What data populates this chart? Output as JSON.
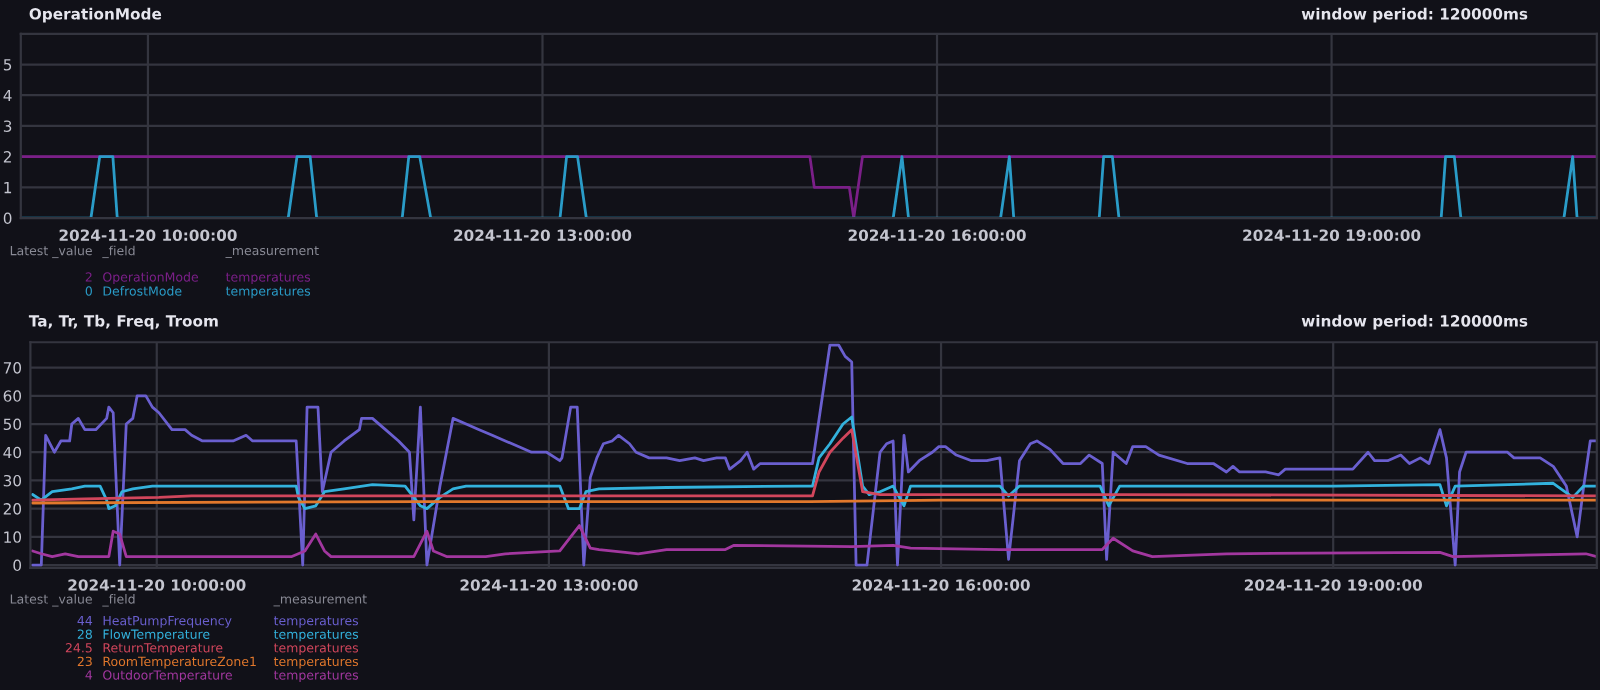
{
  "chart_data": [
    {
      "type": "line",
      "title": "OperationMode",
      "xlim": [
        "2024-11-20T09:02",
        "2024-11-20T21:01"
      ],
      "xticks": [
        {
          "value": "2024-11-20T10:00",
          "label": "2024-11-20 10:00:00"
        },
        {
          "value": "2024-11-20T13:00",
          "label": "2024-11-20 13:00:00"
        },
        {
          "value": "2024-11-20T16:00",
          "label": "2024-11-20 16:00:00"
        },
        {
          "value": "2024-11-20T19:00",
          "label": "2024-11-20 19:00:00"
        }
      ],
      "ylim": [
        0,
        6
      ],
      "yticks": [
        0,
        1,
        2,
        3,
        4,
        5
      ],
      "grid": true,
      "legend": "bottom left",
      "marker": "none",
      "line_style": "solid",
      "annotations": [
        "window period: 120000ms",
        "Latest _value",
        "_field",
        "_measurement",
        "2",
        "temperatures",
        "0",
        "temperatures"
      ],
      "series": [
        {
          "name": "OperationMode",
          "color": "#7b1f88",
          "x": [
            "2024-11-20T09:02",
            "2024-11-20T15:02",
            "2024-11-20T15:04",
            "2024-11-20T15:20",
            "2024-11-20T15:22",
            "2024-11-20T15:26",
            "2024-11-20T21:01"
          ],
          "values": [
            2,
            2,
            1,
            1,
            0,
            2,
            2
          ]
        },
        {
          "name": "DefrostMode",
          "color": "#2a9cc8",
          "x": [
            "2024-11-20T09:02",
            "2024-11-20T09:34",
            "2024-11-20T09:38",
            "2024-11-20T09:44",
            "2024-11-20T09:46",
            "2024-11-20T11:04",
            "2024-11-20T11:08",
            "2024-11-20T11:14",
            "2024-11-20T11:17",
            "2024-11-20T11:56",
            "2024-11-20T11:59",
            "2024-11-20T12:04",
            "2024-11-20T12:09",
            "2024-11-20T13:08",
            "2024-11-20T13:11",
            "2024-11-20T13:16",
            "2024-11-20T13:20",
            "2024-11-20T15:40",
            "2024-11-20T15:44",
            "2024-11-20T15:47",
            "2024-11-20T16:29",
            "2024-11-20T16:33",
            "2024-11-20T16:35",
            "2024-11-20T17:14",
            "2024-11-20T17:16",
            "2024-11-20T17:20",
            "2024-11-20T17:23",
            "2024-11-20T19:50",
            "2024-11-20T19:52",
            "2024-11-20T19:56",
            "2024-11-20T19:59",
            "2024-11-20T20:46",
            "2024-11-20T20:50",
            "2024-11-20T20:52",
            "2024-11-20T21:01"
          ],
          "values": [
            0,
            0,
            2,
            2,
            0,
            0,
            2,
            2,
            0,
            0,
            2,
            2,
            0,
            0,
            2,
            2,
            0,
            0,
            2,
            0,
            0,
            2,
            0,
            0,
            2,
            2,
            0,
            0,
            2,
            2,
            0,
            0,
            2,
            0,
            0
          ]
        }
      ]
    },
    {
      "type": "line",
      "title": "Ta, Tr, Tb, Freq, Troom",
      "xlim": [
        "2024-11-20T09:02",
        "2024-11-20T21:01"
      ],
      "xticks": [
        {
          "value": "2024-11-20T10:00",
          "label": "2024-11-20 10:00:00"
        },
        {
          "value": "2024-11-20T13:00",
          "label": "2024-11-20 13:00:00"
        },
        {
          "value": "2024-11-20T16:00",
          "label": "2024-11-20 16:00:00"
        },
        {
          "value": "2024-11-20T19:00",
          "label": "2024-11-20 19:00:00"
        }
      ],
      "ylim": [
        -1,
        79
      ],
      "yticks": [
        0,
        10,
        20,
        30,
        40,
        50,
        60,
        70
      ],
      "grid": true,
      "legend": "bottom left",
      "marker": "none",
      "line_style": "solid",
      "annotations": [
        "window period: 120000ms",
        "Latest _value",
        "_field",
        "_measurement",
        "44",
        "temperatures",
        "28",
        "temperatures",
        "24.5",
        "temperatures",
        "23",
        "temperatures",
        "4",
        "temperatures"
      ],
      "series": [
        {
          "name": "HeatPumpFrequency",
          "color": "#6a5fcf",
          "x": [
            "2024-11-20T09:03",
            "2024-11-20T09:07",
            "2024-11-20T09:09",
            "2024-11-20T09:13",
            "2024-11-20T09:16",
            "2024-11-20T09:20",
            "2024-11-20T09:21",
            "2024-11-20T09:24",
            "2024-11-20T09:27",
            "2024-11-20T09:32",
            "2024-11-20T09:37",
            "2024-11-20T09:38",
            "2024-11-20T09:40",
            "2024-11-20T09:43",
            "2024-11-20T09:46",
            "2024-11-20T09:49",
            "2024-11-20T09:51",
            "2024-11-20T09:55",
            "2024-11-20T09:58",
            "2024-11-20T10:01",
            "2024-11-20T10:07",
            "2024-11-20T10:13",
            "2024-11-20T10:16",
            "2024-11-20T10:21",
            "2024-11-20T10:35",
            "2024-11-20T10:41",
            "2024-11-20T10:44",
            "2024-11-20T11:04",
            "2024-11-20T11:07",
            "2024-11-20T11:09",
            "2024-11-20T11:14",
            "2024-11-20T11:16",
            "2024-11-20T11:20",
            "2024-11-20T11:26",
            "2024-11-20T11:33",
            "2024-11-20T11:34",
            "2024-11-20T11:39",
            "2024-11-20T11:45",
            "2024-11-20T11:51",
            "2024-11-20T11:56",
            "2024-11-20T11:58",
            "2024-11-20T12:01",
            "2024-11-20T12:04",
            "2024-11-20T12:10",
            "2024-11-20T12:16",
            "2024-11-20T12:22",
            "2024-11-20T12:28",
            "2024-11-20T12:34",
            "2024-11-20T12:40",
            "2024-11-20T12:46",
            "2024-11-20T12:52",
            "2024-11-20T12:59",
            "2024-11-20T13:03",
            "2024-11-20T13:05",
            "2024-11-20T13:06",
            "2024-11-20T13:10",
            "2024-11-20T13:13",
            "2024-11-20T13:16",
            "2024-11-20T13:19",
            "2024-11-20T13:22",
            "2024-11-20T13:25",
            "2024-11-20T13:29",
            "2024-11-20T13:32",
            "2024-11-20T13:37",
            "2024-11-20T13:40",
            "2024-11-20T13:46",
            "2024-11-20T13:54",
            "2024-11-20T14:00",
            "2024-11-20T14:07",
            "2024-11-20T14:11",
            "2024-11-20T14:17",
            "2024-11-20T14:21",
            "2024-11-20T14:23",
            "2024-11-20T14:28",
            "2024-11-20T14:31",
            "2024-11-20T14:34",
            "2024-11-20T14:37",
            "2024-11-20T14:55",
            "2024-11-20T15:01",
            "2024-11-20T15:09",
            "2024-11-20T15:13",
            "2024-11-20T15:16",
            "2024-11-20T15:19",
            "2024-11-20T15:21",
            "2024-11-20T15:26",
            "2024-11-20T15:32",
            "2024-11-20T15:35",
            "2024-11-20T15:38",
            "2024-11-20T15:40",
            "2024-11-20T15:43",
            "2024-11-20T15:45",
            "2024-11-20T15:50",
            "2024-11-20T15:56",
            "2024-11-20T15:59",
            "2024-11-20T16:02",
            "2024-11-20T16:07",
            "2024-11-20T16:14",
            "2024-11-20T16:21",
            "2024-11-20T16:27",
            "2024-11-20T16:31",
            "2024-11-20T16:36",
            "2024-11-20T16:41",
            "2024-11-20T16:44",
            "2024-11-20T16:50",
            "2024-11-20T16:56",
            "2024-11-20T17:04",
            "2024-11-20T17:08",
            "2024-11-20T17:14",
            "2024-11-20T17:16",
            "2024-11-20T17:19",
            "2024-11-20T17:25",
            "2024-11-20T17:28",
            "2024-11-20T17:34",
            "2024-11-20T17:40",
            "2024-11-20T17:53",
            "2024-11-20T18:05",
            "2024-11-20T18:11",
            "2024-11-20T18:14",
            "2024-11-20T18:17",
            "2024-11-20T18:29",
            "2024-11-20T18:35",
            "2024-11-20T18:38",
            "2024-11-20T19:09",
            "2024-11-20T19:16",
            "2024-11-20T19:19",
            "2024-11-20T19:25",
            "2024-11-20T19:31",
            "2024-11-20T19:35",
            "2024-11-20T19:40",
            "2024-11-20T19:44",
            "2024-11-20T19:49",
            "2024-11-20T19:52",
            "2024-11-20T19:56",
            "2024-11-20T19:58",
            "2024-11-20T20:01",
            "2024-11-20T20:20",
            "2024-11-20T20:23",
            "2024-11-20T20:35",
            "2024-11-20T20:41",
            "2024-11-20T20:47",
            "2024-11-20T20:52",
            "2024-11-20T20:55",
            "2024-11-20T20:58",
            "2024-11-20T21:01"
          ],
          "values": [
            0,
            0,
            46,
            40,
            44,
            44,
            50,
            52,
            48,
            48,
            52,
            56,
            54,
            0,
            50,
            52,
            60,
            60,
            56,
            54,
            48,
            48,
            46,
            44,
            44,
            46,
            44,
            44,
            0,
            56,
            56,
            26,
            40,
            44,
            48,
            52,
            52,
            48,
            44,
            40,
            16,
            56,
            0,
            28,
            52,
            50,
            48,
            46,
            44,
            42,
            40,
            40,
            38,
            37,
            38,
            56,
            56,
            0,
            31,
            38,
            43,
            44,
            46,
            43,
            40,
            38,
            38,
            37,
            38,
            37,
            38,
            38,
            34,
            37,
            40,
            34,
            36,
            36,
            36,
            78,
            78,
            74,
            72,
            0,
            0,
            40,
            43,
            44,
            0,
            46,
            33,
            37,
            40,
            42,
            42,
            39,
            37,
            37,
            38,
            2,
            37,
            43,
            44,
            41,
            36,
            36,
            39,
            36,
            2,
            40,
            36,
            42,
            42,
            39,
            36,
            36,
            33,
            35,
            33,
            33,
            32,
            34,
            34,
            40,
            37,
            37,
            39,
            36,
            38,
            36,
            48,
            38,
            0,
            33,
            40,
            40,
            38,
            38,
            35,
            28,
            10,
            28,
            44,
            44
          ]
        },
        {
          "name": "FlowTemperature",
          "color": "#33b2dd",
          "x": [
            "2024-11-20T09:03",
            "2024-11-20T09:07",
            "2024-11-20T09:12",
            "2024-11-20T09:21",
            "2024-11-20T09:27",
            "2024-11-20T09:34",
            "2024-11-20T09:37",
            "2024-11-20T09:38",
            "2024-11-20T09:41",
            "2024-11-20T09:44",
            "2024-11-20T09:49",
            "2024-11-20T09:58",
            "2024-11-20T10:35",
            "2024-11-20T11:04",
            "2024-11-20T11:05",
            "2024-11-20T11:08",
            "2024-11-20T11:13",
            "2024-11-20T11:17",
            "2024-11-20T11:26",
            "2024-11-20T11:39",
            "2024-11-20T11:54",
            "2024-11-20T12:01",
            "2024-11-20T12:04",
            "2024-11-20T12:10",
            "2024-11-20T12:16",
            "2024-11-20T12:22",
            "2024-11-20T13:05",
            "2024-11-20T13:09",
            "2024-11-20T13:14",
            "2024-11-20T13:17",
            "2024-11-20T13:23",
            "2024-11-20T13:54",
            "2024-11-20T14:55",
            "2024-11-20T15:01",
            "2024-11-20T15:04",
            "2024-11-20T15:09",
            "2024-11-20T15:15",
            "2024-11-20T15:19",
            "2024-11-20T15:24",
            "2024-11-20T15:27",
            "2024-11-20T15:32",
            "2024-11-20T15:38",
            "2024-11-20T15:43",
            "2024-11-20T15:46",
            "2024-11-20T16:27",
            "2024-11-20T16:31",
            "2024-11-20T16:36",
            "2024-11-20T17:13",
            "2024-11-20T17:17",
            "2024-11-20T17:22",
            "2024-11-20T19:00",
            "2024-11-20T19:49",
            "2024-11-20T19:52",
            "2024-11-20T19:56",
            "2024-11-20T20:41",
            "2024-11-20T20:50",
            "2024-11-20T20:55",
            "2024-11-20T21:01"
          ],
          "values": [
            25,
            23,
            26,
            27,
            28,
            28,
            23,
            20,
            21,
            26,
            27,
            28,
            28,
            28,
            24,
            20,
            21,
            26,
            27,
            28.5,
            28,
            21,
            20,
            24,
            27,
            28,
            28,
            20,
            20,
            26,
            27,
            27.5,
            28,
            28,
            38,
            43,
            50,
            52.5,
            28,
            25,
            26,
            28,
            21,
            28,
            28,
            24.5,
            28,
            28,
            21,
            28,
            28,
            28.5,
            21,
            28,
            29,
            24,
            28,
            28
          ]
        },
        {
          "name": "ReturnTemperature",
          "color": "#d2465c",
          "x": [
            "2024-11-20T09:03",
            "2024-11-20T09:27",
            "2024-11-20T10:01",
            "2024-11-20T10:16",
            "2024-11-20T15:01",
            "2024-11-20T15:04",
            "2024-11-20T15:09",
            "2024-11-20T15:15",
            "2024-11-20T15:19",
            "2024-11-20T15:24",
            "2024-11-20T15:32",
            "2024-11-20T17:22",
            "2024-11-20T21:01"
          ],
          "values": [
            23,
            23.5,
            24,
            24.5,
            24.5,
            33,
            40,
            45,
            48,
            26,
            25,
            25,
            24.5
          ]
        },
        {
          "name": "RoomTemperatureZone1",
          "color": "#e2782c",
          "x": [
            "2024-11-20T09:03",
            "2024-11-20T12:00",
            "2024-11-20T15:00",
            "2024-11-20T16:00",
            "2024-11-20T21:01"
          ],
          "values": [
            22,
            22.5,
            22.5,
            23,
            23
          ]
        },
        {
          "name": "OutdoorTemperature",
          "color": "#a2379f",
          "x": [
            "2024-11-20T09:03",
            "2024-11-20T09:07",
            "2024-11-20T09:12",
            "2024-11-20T09:18",
            "2024-11-20T09:24",
            "2024-11-20T09:38",
            "2024-11-20T09:40",
            "2024-11-20T09:43",
            "2024-11-20T09:46",
            "2024-11-20T11:02",
            "2024-11-20T11:08",
            "2024-11-20T11:13",
            "2024-11-20T11:17",
            "2024-11-20T11:20",
            "2024-11-20T11:58",
            "2024-11-20T12:04",
            "2024-11-20T12:07",
            "2024-11-20T12:13",
            "2024-11-20T12:31",
            "2024-11-20T12:40",
            "2024-11-20T13:05",
            "2024-11-20T13:14",
            "2024-11-20T13:19",
            "2024-11-20T13:23",
            "2024-11-20T13:35",
            "2024-11-20T13:41",
            "2024-11-20T13:54",
            "2024-11-20T14:21",
            "2024-11-20T14:25",
            "2024-11-20T15:19",
            "2024-11-20T15:38",
            "2024-11-20T15:46",
            "2024-11-20T16:27",
            "2024-11-20T17:14",
            "2024-11-20T17:19",
            "2024-11-20T17:28",
            "2024-11-20T17:37",
            "2024-11-20T18:11",
            "2024-11-20T19:49",
            "2024-11-20T19:55",
            "2024-11-20T20:56",
            "2024-11-20T21:01"
          ],
          "values": [
            5,
            4,
            3,
            4,
            3,
            3,
            12,
            11,
            3,
            3,
            5,
            11,
            5,
            3,
            3,
            12,
            5,
            3,
            3,
            4,
            5,
            14,
            6,
            5.5,
            4.5,
            4,
            5.5,
            5.5,
            7,
            6.5,
            7,
            6,
            5.5,
            5.5,
            9.5,
            5,
            3,
            4,
            4.5,
            3,
            4,
            3
          ]
        }
      ]
    }
  ]
}
